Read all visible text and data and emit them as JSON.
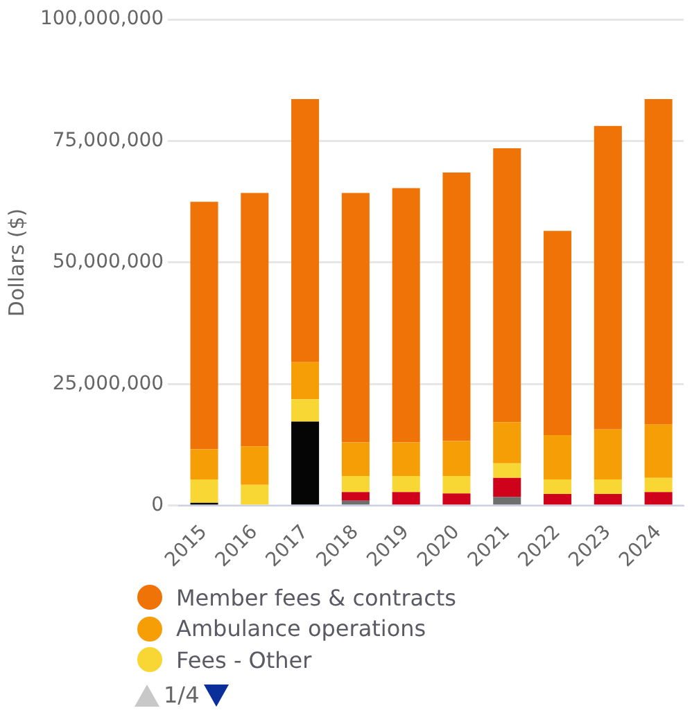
{
  "chart_data": {
    "type": "bar",
    "stacked": true,
    "ylabel": "Dollars ($)",
    "categories": [
      "2015",
      "2016",
      "2017",
      "2018",
      "2019",
      "2020",
      "2021",
      "2022",
      "2023",
      "2024"
    ],
    "series": [
      {
        "color": "#050505",
        "values": [
          600000,
          null,
          17300000,
          null,
          null,
          null,
          null,
          null,
          null,
          null
        ]
      },
      {
        "color": "#6e6e6e",
        "values": [
          null,
          null,
          null,
          1000000,
          null,
          null,
          1800000,
          null,
          null,
          null
        ]
      },
      {
        "color": "#d0021b",
        "values": [
          null,
          null,
          null,
          1800000,
          2800000,
          2500000,
          3900000,
          2400000,
          2400000,
          2800000
        ]
      },
      {
        "name": "Fees - Other",
        "color": "#f8d634",
        "values": [
          4800000,
          4300000,
          4600000,
          3300000,
          3300000,
          3600000,
          3000000,
          3000000,
          3000000,
          2900000
        ]
      },
      {
        "name": "Ambulance operations",
        "color": "#f59e06",
        "values": [
          6200000,
          7900000,
          7600000,
          6900000,
          6900000,
          7200000,
          8500000,
          9100000,
          10300000,
          11000000
        ]
      },
      {
        "name": "Member fees & contracts",
        "color": "#f07308",
        "values": [
          50900000,
          52100000,
          54100000,
          51300000,
          52300000,
          55200000,
          56300000,
          42000000,
          62400000,
          66900000
        ]
      }
    ],
    "ylim": [
      0,
      100000000
    ],
    "yticks": [
      {
        "value": 0,
        "label": "0"
      },
      {
        "value": 25000000,
        "label": "25,000,000"
      },
      {
        "value": 50000000,
        "label": "50,000,000"
      },
      {
        "value": 75000000,
        "label": "75,000,000"
      },
      {
        "value": 100000000,
        "label": "100,000,000"
      }
    ],
    "grid": "y",
    "legend": "bottom",
    "annotations": [
      "1/4"
    ]
  }
}
